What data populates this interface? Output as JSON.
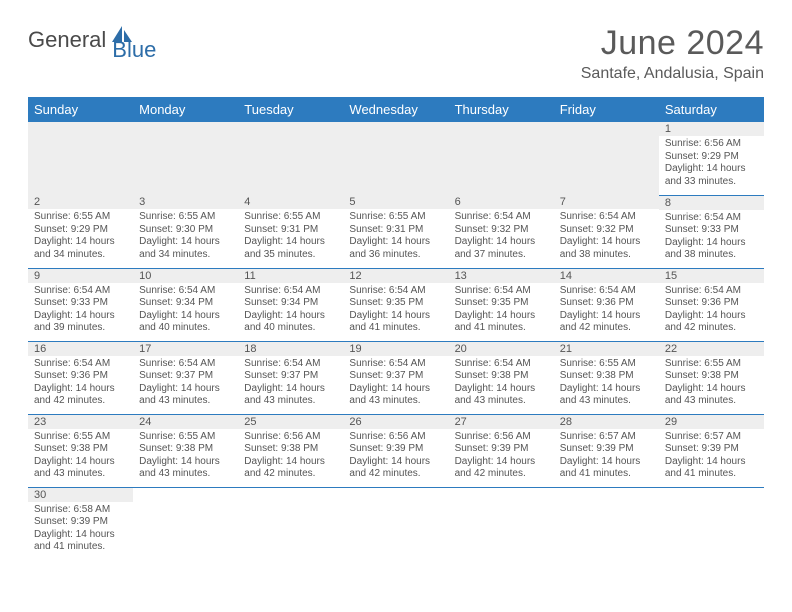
{
  "logo": {
    "word1": "General",
    "word2": "Blue"
  },
  "title": "June 2024",
  "location": "Santafe, Andalusia, Spain",
  "colors": {
    "header_bg": "#2d7bbf",
    "header_fg": "#ffffff",
    "row_border": "#2d7bbf",
    "daynum_bg": "#eeeeee",
    "text": "#555555",
    "logo_gray": "#4a4a4a",
    "logo_blue": "#2d6da8"
  },
  "weekdays": [
    "Sunday",
    "Monday",
    "Tuesday",
    "Wednesday",
    "Thursday",
    "Friday",
    "Saturday"
  ],
  "weeks": [
    [
      null,
      null,
      null,
      null,
      null,
      null,
      {
        "n": "1",
        "sunrise": "6:56 AM",
        "sunset": "9:29 PM",
        "dl": "14 hours and 33 minutes."
      }
    ],
    [
      {
        "n": "2",
        "sunrise": "6:55 AM",
        "sunset": "9:29 PM",
        "dl": "14 hours and 34 minutes."
      },
      {
        "n": "3",
        "sunrise": "6:55 AM",
        "sunset": "9:30 PM",
        "dl": "14 hours and 34 minutes."
      },
      {
        "n": "4",
        "sunrise": "6:55 AM",
        "sunset": "9:31 PM",
        "dl": "14 hours and 35 minutes."
      },
      {
        "n": "5",
        "sunrise": "6:55 AM",
        "sunset": "9:31 PM",
        "dl": "14 hours and 36 minutes."
      },
      {
        "n": "6",
        "sunrise": "6:54 AM",
        "sunset": "9:32 PM",
        "dl": "14 hours and 37 minutes."
      },
      {
        "n": "7",
        "sunrise": "6:54 AM",
        "sunset": "9:32 PM",
        "dl": "14 hours and 38 minutes."
      },
      {
        "n": "8",
        "sunrise": "6:54 AM",
        "sunset": "9:33 PM",
        "dl": "14 hours and 38 minutes."
      }
    ],
    [
      {
        "n": "9",
        "sunrise": "6:54 AM",
        "sunset": "9:33 PM",
        "dl": "14 hours and 39 minutes."
      },
      {
        "n": "10",
        "sunrise": "6:54 AM",
        "sunset": "9:34 PM",
        "dl": "14 hours and 40 minutes."
      },
      {
        "n": "11",
        "sunrise": "6:54 AM",
        "sunset": "9:34 PM",
        "dl": "14 hours and 40 minutes."
      },
      {
        "n": "12",
        "sunrise": "6:54 AM",
        "sunset": "9:35 PM",
        "dl": "14 hours and 41 minutes."
      },
      {
        "n": "13",
        "sunrise": "6:54 AM",
        "sunset": "9:35 PM",
        "dl": "14 hours and 41 minutes."
      },
      {
        "n": "14",
        "sunrise": "6:54 AM",
        "sunset": "9:36 PM",
        "dl": "14 hours and 42 minutes."
      },
      {
        "n": "15",
        "sunrise": "6:54 AM",
        "sunset": "9:36 PM",
        "dl": "14 hours and 42 minutes."
      }
    ],
    [
      {
        "n": "16",
        "sunrise": "6:54 AM",
        "sunset": "9:36 PM",
        "dl": "14 hours and 42 minutes."
      },
      {
        "n": "17",
        "sunrise": "6:54 AM",
        "sunset": "9:37 PM",
        "dl": "14 hours and 43 minutes."
      },
      {
        "n": "18",
        "sunrise": "6:54 AM",
        "sunset": "9:37 PM",
        "dl": "14 hours and 43 minutes."
      },
      {
        "n": "19",
        "sunrise": "6:54 AM",
        "sunset": "9:37 PM",
        "dl": "14 hours and 43 minutes."
      },
      {
        "n": "20",
        "sunrise": "6:54 AM",
        "sunset": "9:38 PM",
        "dl": "14 hours and 43 minutes."
      },
      {
        "n": "21",
        "sunrise": "6:55 AM",
        "sunset": "9:38 PM",
        "dl": "14 hours and 43 minutes."
      },
      {
        "n": "22",
        "sunrise": "6:55 AM",
        "sunset": "9:38 PM",
        "dl": "14 hours and 43 minutes."
      }
    ],
    [
      {
        "n": "23",
        "sunrise": "6:55 AM",
        "sunset": "9:38 PM",
        "dl": "14 hours and 43 minutes."
      },
      {
        "n": "24",
        "sunrise": "6:55 AM",
        "sunset": "9:38 PM",
        "dl": "14 hours and 43 minutes."
      },
      {
        "n": "25",
        "sunrise": "6:56 AM",
        "sunset": "9:38 PM",
        "dl": "14 hours and 42 minutes."
      },
      {
        "n": "26",
        "sunrise": "6:56 AM",
        "sunset": "9:39 PM",
        "dl": "14 hours and 42 minutes."
      },
      {
        "n": "27",
        "sunrise": "6:56 AM",
        "sunset": "9:39 PM",
        "dl": "14 hours and 42 minutes."
      },
      {
        "n": "28",
        "sunrise": "6:57 AM",
        "sunset": "9:39 PM",
        "dl": "14 hours and 41 minutes."
      },
      {
        "n": "29",
        "sunrise": "6:57 AM",
        "sunset": "9:39 PM",
        "dl": "14 hours and 41 minutes."
      }
    ],
    [
      {
        "n": "30",
        "sunrise": "6:58 AM",
        "sunset": "9:39 PM",
        "dl": "14 hours and 41 minutes."
      },
      null,
      null,
      null,
      null,
      null,
      null
    ]
  ],
  "labels": {
    "sunrise": "Sunrise:",
    "sunset": "Sunset:",
    "daylight": "Daylight:"
  }
}
